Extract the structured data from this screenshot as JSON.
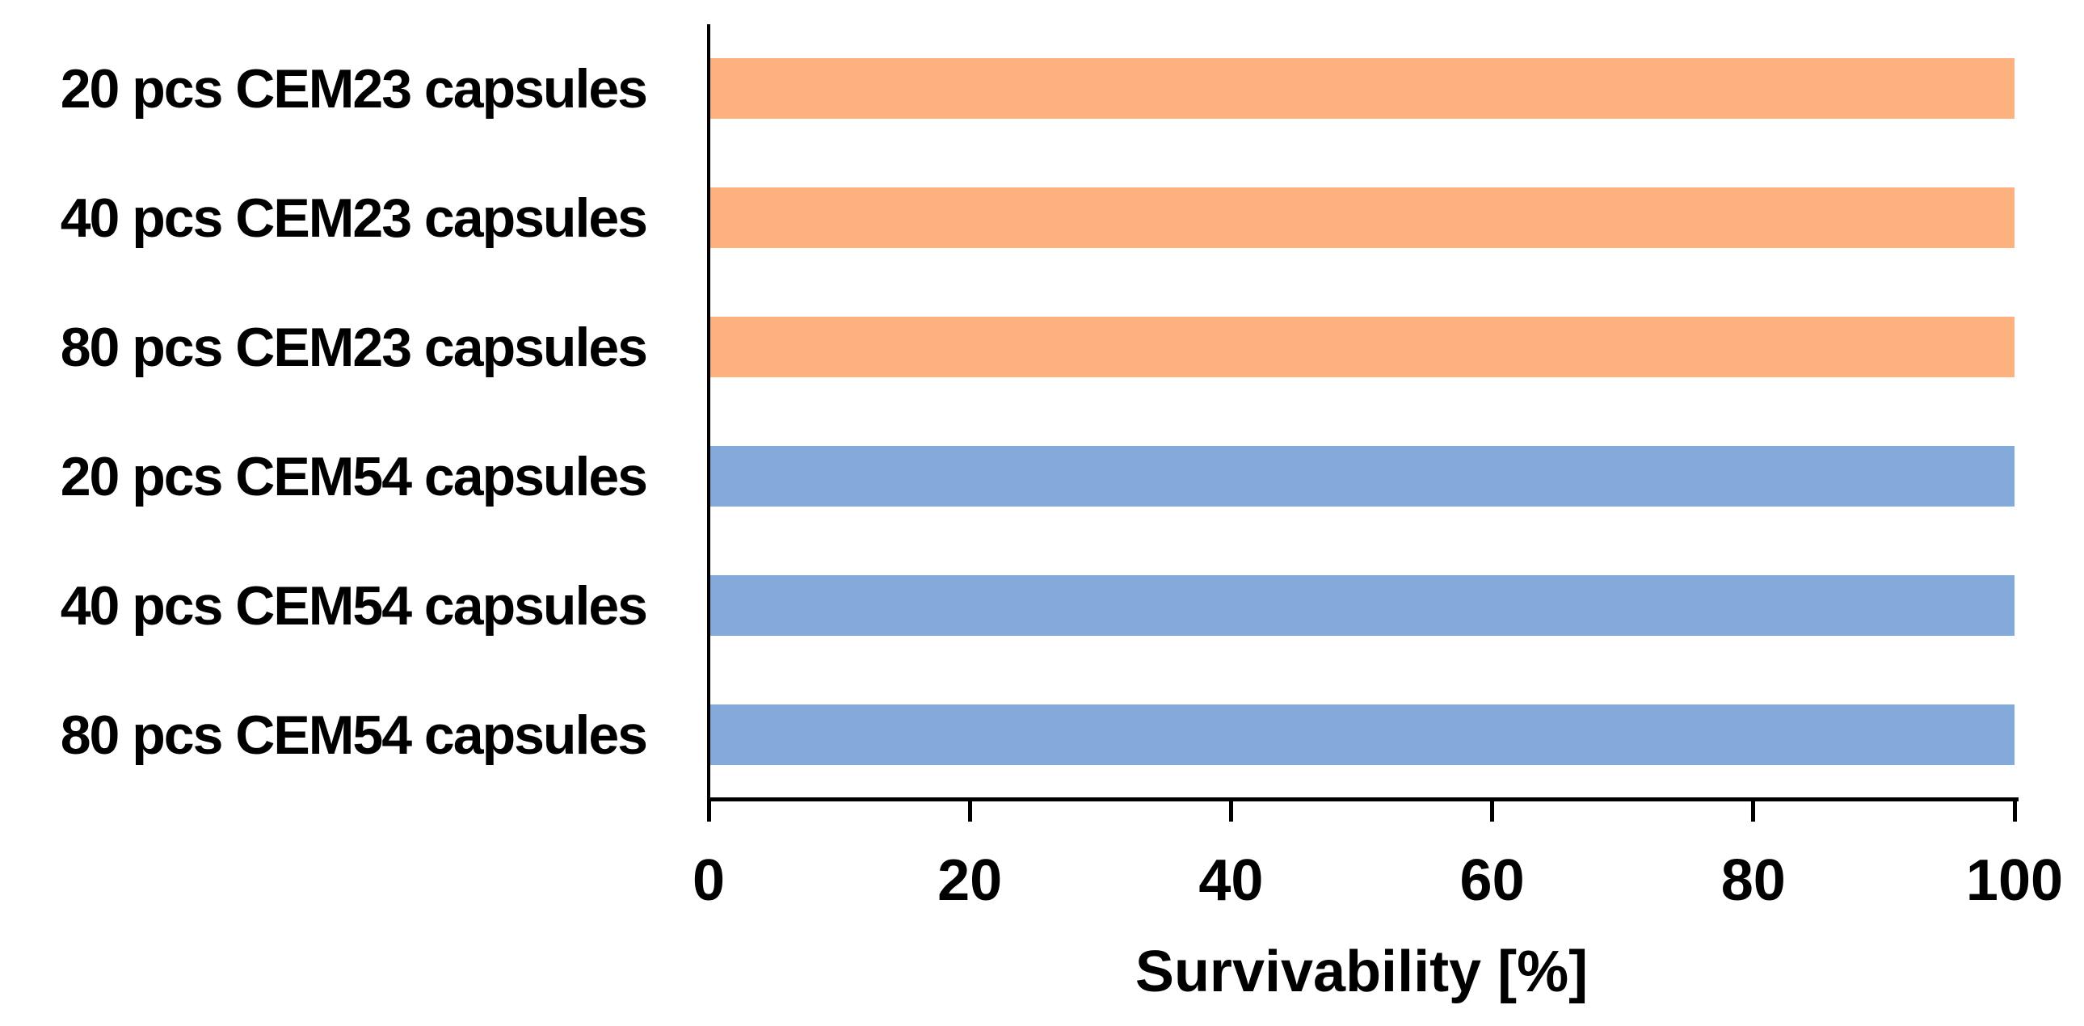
{
  "chart_data": {
    "type": "bar",
    "orientation": "horizontal",
    "title": "",
    "xlabel": "Survivability [%]",
    "ylabel": "",
    "categories": [
      "20 pcs CEM23 capsules",
      "40 pcs CEM23 capsules",
      "80 pcs CEM23 capsules",
      "20 pcs CEM54 capsules",
      "40 pcs CEM54 capsules",
      "80 pcs CEM54 capsules"
    ],
    "values": [
      100,
      100,
      100,
      100,
      100,
      100
    ],
    "bar_colors": [
      "#FCB17E",
      "#FCB17E",
      "#FCB17E",
      "#84AADC",
      "#84AADC",
      "#84AADC"
    ],
    "group_colors": {
      "CEM23": "#FCB17E",
      "CEM54": "#84AADC"
    },
    "xticks": [
      0,
      20,
      40,
      60,
      80,
      100
    ],
    "xlim": [
      0,
      100
    ],
    "grid": false,
    "legend": null,
    "axis_color": "#000000",
    "text_color": "#000000"
  }
}
